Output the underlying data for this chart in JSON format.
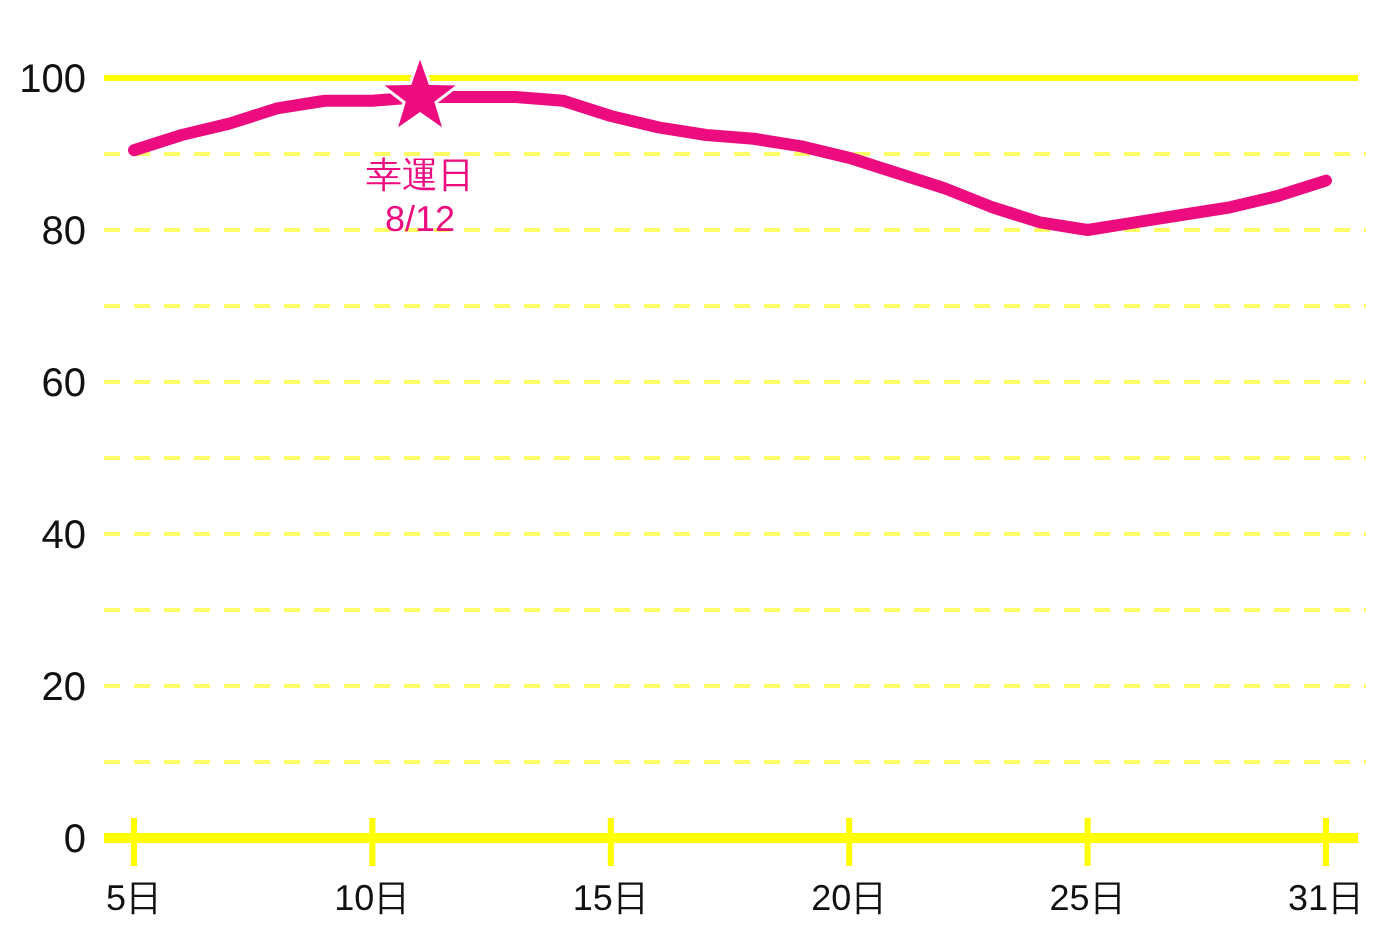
{
  "chart_data": {
    "type": "line",
    "categories": [
      "5日",
      null,
      null,
      null,
      null,
      "10日",
      null,
      null,
      null,
      null,
      "15日",
      null,
      null,
      null,
      null,
      "20日",
      null,
      null,
      null,
      null,
      "25日",
      null,
      null,
      null,
      null,
      "31日"
    ],
    "series": [
      {
        "color": "#ec0c80",
        "values": [
          90.5,
          92.5,
          94,
          96,
          97,
          97,
          97.5,
          97.5,
          97.5,
          97,
          95,
          93.5,
          92.5,
          92,
          91,
          89.5,
          87.5,
          85.5,
          83,
          81,
          80,
          81,
          82,
          83,
          84.5,
          86.5
        ]
      },
      {
        "type": "scatter",
        "marker": "star",
        "color": "#ec0c80",
        "values": [
          null,
          null,
          null,
          null,
          null,
          null,
          97.5,
          null,
          null,
          null,
          null,
          null,
          null,
          null,
          null,
          null,
          null,
          null,
          null,
          null,
          null,
          null,
          null,
          null,
          null,
          null
        ]
      }
    ],
    "ylim": [
      0,
      100
    ],
    "yticks": [
      0,
      {
        "value": 10,
        "label": null
      },
      20,
      {
        "value": 30,
        "label": null
      },
      40,
      {
        "value": 50,
        "label": null
      },
      60,
      {
        "value": 70,
        "label": null
      },
      80,
      {
        "value": 90,
        "label": null
      },
      100
    ],
    "grid": "y",
    "annotations": [
      "幸運日\n8/12"
    ]
  }
}
